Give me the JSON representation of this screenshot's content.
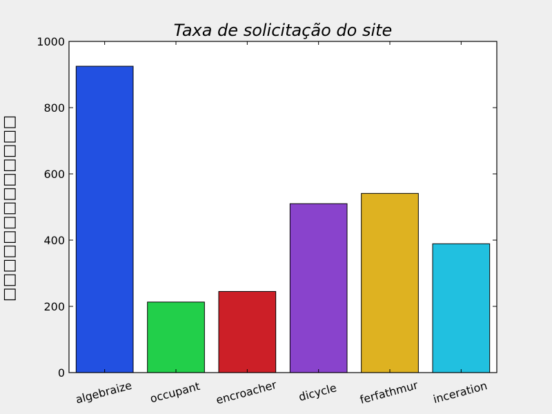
{
  "chart_data": {
    "type": "bar",
    "title": "Taxa de solicitação do site",
    "xlabel": "",
    "ylabel": "□□□□□□□□□□□□□",
    "categories": [
      "algebraize",
      "occupant",
      "encroacher",
      "dicycle",
      "ferfathmur",
      "inceration"
    ],
    "values": [
      925,
      213,
      245,
      510,
      541,
      389
    ],
    "colors": [
      "#2250e1",
      "#22cf4a",
      "#cc1f27",
      "#8943cc",
      "#deb221",
      "#21c0e0"
    ],
    "ylim": [
      0,
      1000
    ],
    "yticks": [
      0,
      200,
      400,
      600,
      800,
      1000
    ],
    "grid": false,
    "legend": "none"
  }
}
